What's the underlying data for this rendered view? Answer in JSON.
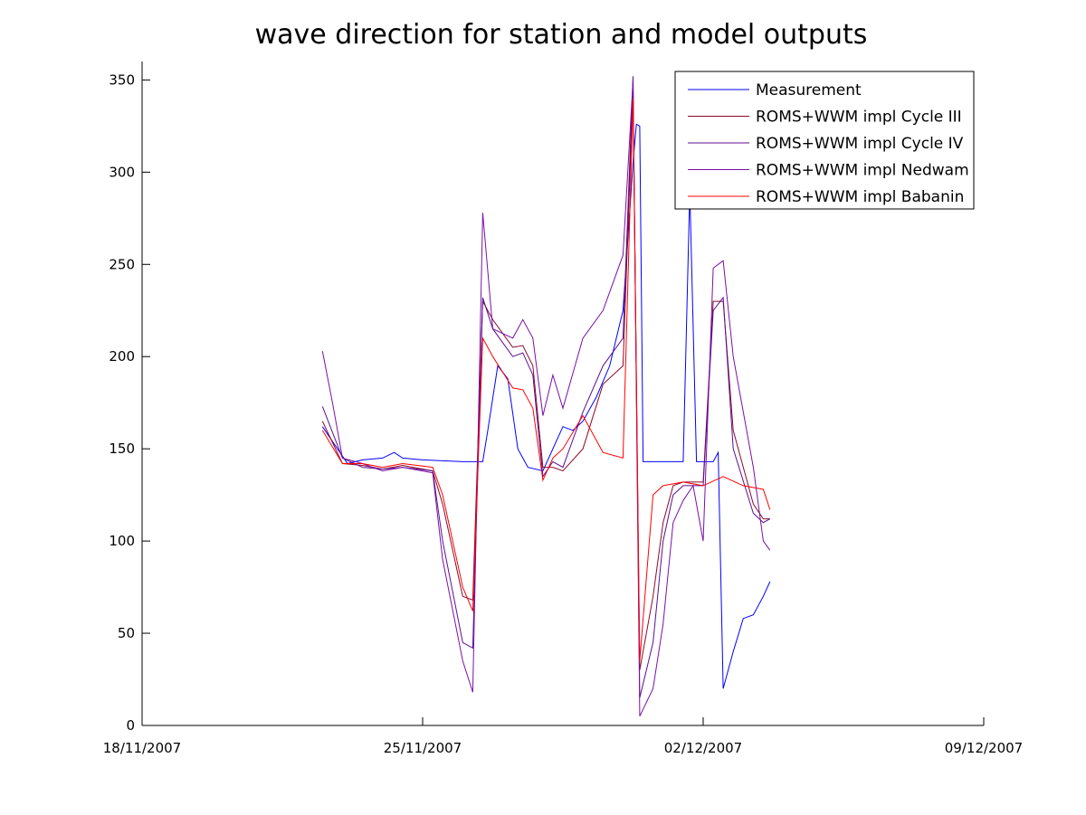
{
  "chart_data": {
    "type": "line",
    "title": "wave direction for station and model outputs",
    "xlabel": "",
    "ylabel": "",
    "x_unit": "date",
    "xlim": [
      "2007-11-18",
      "2007-12-09"
    ],
    "ylim": [
      0,
      360
    ],
    "xticks": [
      "2007-11-18",
      "2007-11-25",
      "2007-12-02",
      "2007-12-09"
    ],
    "xtick_labels": [
      "18/11/2007",
      "25/11/2007",
      "02/12/2007",
      "09/12/2007"
    ],
    "yticks": [
      0,
      50,
      100,
      150,
      200,
      250,
      300,
      350
    ],
    "ytick_labels": [
      "0",
      "50",
      "100",
      "150",
      "200",
      "250",
      "300",
      "350"
    ],
    "grid": false,
    "legend_position": "top-right",
    "series": [
      {
        "name": "Measurement",
        "color": "#0000ff",
        "points": [
          [
            "2007-11-22 12:00",
            162
          ],
          [
            "2007-11-23 03:00",
            142
          ],
          [
            "2007-11-23 12:00",
            144
          ],
          [
            "2007-11-24 00:00",
            145
          ],
          [
            "2007-11-24 07:00",
            148
          ],
          [
            "2007-11-24 12:00",
            145
          ],
          [
            "2007-11-25 00:00",
            144
          ],
          [
            "2007-11-26 00:00",
            143
          ],
          [
            "2007-11-26 12:00",
            143
          ],
          [
            "2007-11-26 15:00",
            160
          ],
          [
            "2007-11-26 21:00",
            195
          ],
          [
            "2007-11-27 03:00",
            188
          ],
          [
            "2007-11-27 09:00",
            150
          ],
          [
            "2007-11-27 15:00",
            140
          ],
          [
            "2007-11-28 00:00",
            138
          ],
          [
            "2007-11-28 06:00",
            150
          ],
          [
            "2007-11-28 12:00",
            162
          ],
          [
            "2007-11-28 18:00",
            160
          ],
          [
            "2007-11-29 00:00",
            165
          ],
          [
            "2007-11-29 08:00",
            178
          ],
          [
            "2007-11-29 16:00",
            195
          ],
          [
            "2007-11-30 00:00",
            225
          ],
          [
            "2007-11-30 06:00",
            305
          ],
          [
            "2007-11-30 08:00",
            326
          ],
          [
            "2007-11-30 10:00",
            325
          ],
          [
            "2007-11-30 12:00",
            143
          ],
          [
            "2007-12-01 00:00",
            143
          ],
          [
            "2007-12-01 12:00",
            143
          ],
          [
            "2007-12-01 16:00",
            290
          ],
          [
            "2007-12-01 20:00",
            143
          ],
          [
            "2007-12-02 06:00",
            143
          ],
          [
            "2007-12-02 09:00",
            148
          ],
          [
            "2007-12-02 12:00",
            20
          ],
          [
            "2007-12-02 18:00",
            40
          ],
          [
            "2007-12-03 00:00",
            58
          ],
          [
            "2007-12-03 06:00",
            60
          ],
          [
            "2007-12-03 12:00",
            70
          ],
          [
            "2007-12-03 16:00",
            78
          ]
        ]
      },
      {
        "name": "ROMS+WWM impl Cycle III",
        "color": "#8b0a2a",
        "points": [
          [
            "2007-11-22 12:00",
            165
          ],
          [
            "2007-11-23 00:00",
            142
          ],
          [
            "2007-11-23 12:00",
            141
          ],
          [
            "2007-11-24 00:00",
            139
          ],
          [
            "2007-11-24 12:00",
            141
          ],
          [
            "2007-11-25 06:00",
            138
          ],
          [
            "2007-11-25 12:00",
            120
          ],
          [
            "2007-11-26 00:00",
            70
          ],
          [
            "2007-11-26 06:00",
            68
          ],
          [
            "2007-11-26 12:00",
            230
          ],
          [
            "2007-11-26 18:00",
            220
          ],
          [
            "2007-11-27 06:00",
            205
          ],
          [
            "2007-11-27 12:00",
            206
          ],
          [
            "2007-11-27 18:00",
            195
          ],
          [
            "2007-11-28 00:00",
            140
          ],
          [
            "2007-11-28 06:00",
            140
          ],
          [
            "2007-11-28 12:00",
            138
          ],
          [
            "2007-11-29 00:00",
            150
          ],
          [
            "2007-11-29 12:00",
            185
          ],
          [
            "2007-11-30 00:00",
            195
          ],
          [
            "2007-11-30 06:00",
            345
          ],
          [
            "2007-11-30 10:00",
            30
          ],
          [
            "2007-11-30 18:00",
            70
          ],
          [
            "2007-12-01 00:00",
            110
          ],
          [
            "2007-12-01 06:00",
            130
          ],
          [
            "2007-12-01 12:00",
            132
          ],
          [
            "2007-12-02 00:00",
            132
          ],
          [
            "2007-12-02 06:00",
            230
          ],
          [
            "2007-12-02 12:00",
            230
          ],
          [
            "2007-12-02 18:00",
            160
          ],
          [
            "2007-12-03 06:00",
            120
          ],
          [
            "2007-12-03 12:00",
            112
          ],
          [
            "2007-12-03 16:00",
            112
          ]
        ]
      },
      {
        "name": "ROMS+WWM impl Cycle IV",
        "color": "#5b0e91",
        "points": [
          [
            "2007-11-22 12:00",
            173
          ],
          [
            "2007-11-23 00:00",
            145
          ],
          [
            "2007-11-23 12:00",
            140
          ],
          [
            "2007-11-24 00:00",
            139
          ],
          [
            "2007-11-24 12:00",
            140
          ],
          [
            "2007-11-25 06:00",
            138
          ],
          [
            "2007-11-25 12:00",
            100
          ],
          [
            "2007-11-26 00:00",
            45
          ],
          [
            "2007-11-26 06:00",
            42
          ],
          [
            "2007-11-26 12:00",
            232
          ],
          [
            "2007-11-26 18:00",
            215
          ],
          [
            "2007-11-27 06:00",
            200
          ],
          [
            "2007-11-27 12:00",
            202
          ],
          [
            "2007-11-27 18:00",
            190
          ],
          [
            "2007-11-28 00:00",
            135
          ],
          [
            "2007-11-28 06:00",
            143
          ],
          [
            "2007-11-28 12:00",
            140
          ],
          [
            "2007-11-29 00:00",
            170
          ],
          [
            "2007-11-29 12:00",
            195
          ],
          [
            "2007-11-30 00:00",
            210
          ],
          [
            "2007-11-30 06:00",
            352
          ],
          [
            "2007-11-30 10:00",
            15
          ],
          [
            "2007-11-30 18:00",
            45
          ],
          [
            "2007-12-01 00:00",
            100
          ],
          [
            "2007-12-01 06:00",
            125
          ],
          [
            "2007-12-01 12:00",
            130
          ],
          [
            "2007-12-02 00:00",
            130
          ],
          [
            "2007-12-02 06:00",
            225
          ],
          [
            "2007-12-02 12:00",
            232
          ],
          [
            "2007-12-02 18:00",
            150
          ],
          [
            "2007-12-03 06:00",
            115
          ],
          [
            "2007-12-03 12:00",
            110
          ],
          [
            "2007-12-03 16:00",
            112
          ]
        ]
      },
      {
        "name": "ROMS+WWM impl Nedwam",
        "color": "#7a10a8",
        "points": [
          [
            "2007-11-22 12:00",
            203
          ],
          [
            "2007-11-22 18:00",
            175
          ],
          [
            "2007-11-23 00:00",
            145
          ],
          [
            "2007-11-23 12:00",
            142
          ],
          [
            "2007-11-24 00:00",
            138
          ],
          [
            "2007-11-24 12:00",
            140
          ],
          [
            "2007-11-25 06:00",
            137
          ],
          [
            "2007-11-25 12:00",
            90
          ],
          [
            "2007-11-26 00:00",
            35
          ],
          [
            "2007-11-26 06:00",
            18
          ],
          [
            "2007-11-26 12:00",
            278
          ],
          [
            "2007-11-26 18:00",
            215
          ],
          [
            "2007-11-27 06:00",
            210
          ],
          [
            "2007-11-27 12:00",
            220
          ],
          [
            "2007-11-27 18:00",
            210
          ],
          [
            "2007-11-28 00:00",
            168
          ],
          [
            "2007-11-28 06:00",
            190
          ],
          [
            "2007-11-28 12:00",
            172
          ],
          [
            "2007-11-29 00:00",
            210
          ],
          [
            "2007-11-29 12:00",
            225
          ],
          [
            "2007-11-30 00:00",
            255
          ],
          [
            "2007-11-30 06:00",
            350
          ],
          [
            "2007-11-30 10:00",
            5
          ],
          [
            "2007-11-30 18:00",
            20
          ],
          [
            "2007-12-01 00:00",
            55
          ],
          [
            "2007-12-01 06:00",
            110
          ],
          [
            "2007-12-01 12:00",
            122
          ],
          [
            "2007-12-01 18:00",
            130
          ],
          [
            "2007-12-02 00:00",
            100
          ],
          [
            "2007-12-02 06:00",
            248
          ],
          [
            "2007-12-02 12:00",
            252
          ],
          [
            "2007-12-02 18:00",
            200
          ],
          [
            "2007-12-03 06:00",
            140
          ],
          [
            "2007-12-03 12:00",
            100
          ],
          [
            "2007-12-03 16:00",
            95
          ]
        ]
      },
      {
        "name": "ROMS+WWM impl Babanin",
        "color": "#ff0000",
        "points": [
          [
            "2007-11-22 12:00",
            160
          ],
          [
            "2007-11-23 00:00",
            142
          ],
          [
            "2007-11-23 12:00",
            142
          ],
          [
            "2007-11-24 00:00",
            140
          ],
          [
            "2007-11-24 12:00",
            142
          ],
          [
            "2007-11-25 06:00",
            140
          ],
          [
            "2007-11-25 12:00",
            125
          ],
          [
            "2007-11-26 00:00",
            75
          ],
          [
            "2007-11-26 06:00",
            62
          ],
          [
            "2007-11-26 12:00",
            210
          ],
          [
            "2007-11-26 18:00",
            200
          ],
          [
            "2007-11-27 06:00",
            183
          ],
          [
            "2007-11-27 12:00",
            182
          ],
          [
            "2007-11-27 18:00",
            172
          ],
          [
            "2007-11-28 00:00",
            133
          ],
          [
            "2007-11-28 06:00",
            145
          ],
          [
            "2007-11-28 12:00",
            150
          ],
          [
            "2007-11-29 00:00",
            168
          ],
          [
            "2007-11-29 12:00",
            148
          ],
          [
            "2007-11-30 00:00",
            145
          ],
          [
            "2007-11-30 06:00",
            340
          ],
          [
            "2007-11-30 10:00",
            35
          ],
          [
            "2007-11-30 18:00",
            125
          ],
          [
            "2007-12-01 00:00",
            130
          ],
          [
            "2007-12-01 12:00",
            132
          ],
          [
            "2007-12-02 00:00",
            130
          ],
          [
            "2007-12-02 12:00",
            135
          ],
          [
            "2007-12-03 00:00",
            130
          ],
          [
            "2007-12-03 12:00",
            128
          ],
          [
            "2007-12-03 16:00",
            117
          ]
        ]
      }
    ]
  }
}
